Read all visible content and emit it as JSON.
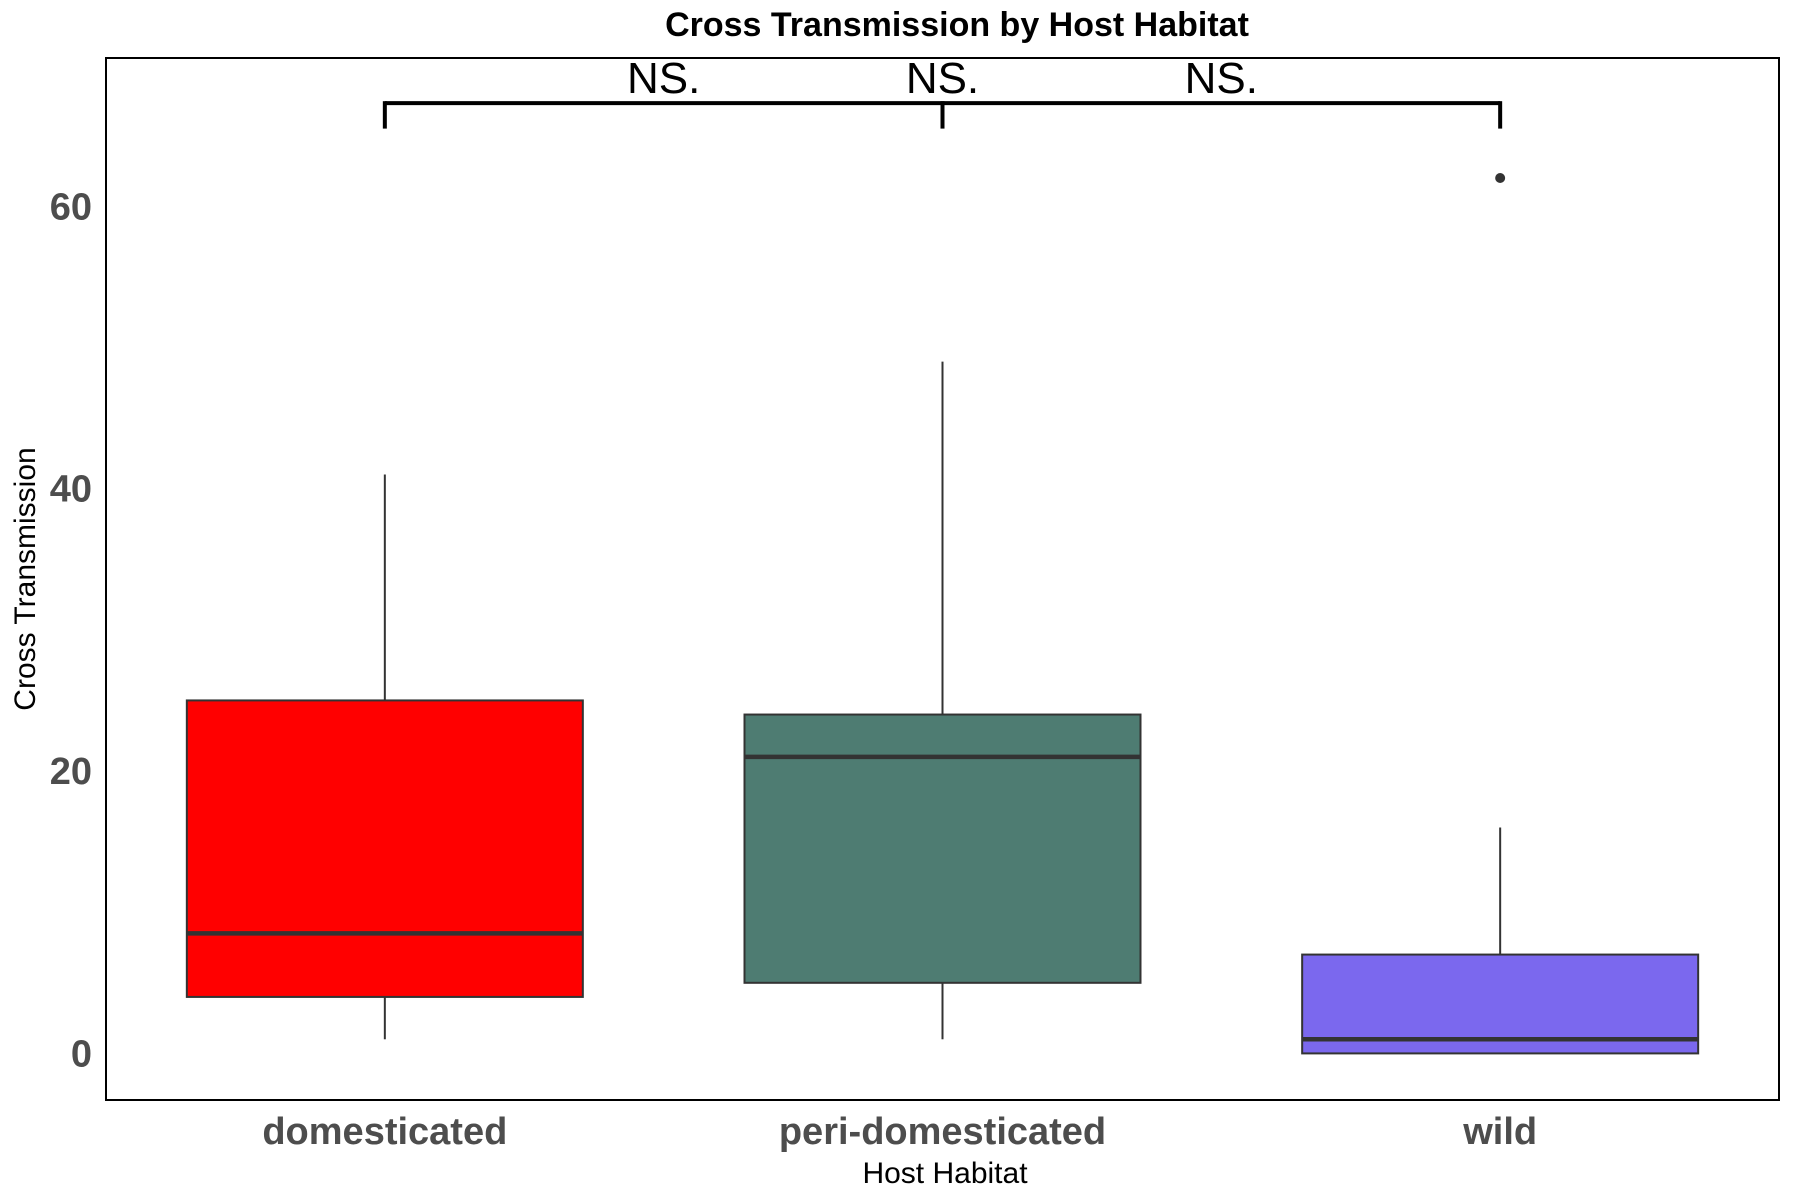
{
  "chart_data": {
    "type": "box",
    "title": "Cross Transmission by Host Habitat",
    "xlabel": "Host Habitat",
    "ylabel": "Cross Transmission",
    "ylim": [
      -3.3,
      70.5
    ],
    "yticks": [
      0,
      20,
      40,
      60
    ],
    "grid": false,
    "legend": "none",
    "categories": [
      "domesticated",
      "peri-domesticated",
      "wild"
    ],
    "boxes": [
      {
        "category": "domesticated",
        "color": "#ff0000",
        "q1": 4,
        "median": 8.5,
        "q3": 25,
        "whisker_low": 1,
        "whisker_high": 41,
        "outliers": []
      },
      {
        "category": "peri-domesticated",
        "color": "#4e7c72",
        "q1": 5,
        "median": 21,
        "q3": 24,
        "whisker_low": 1,
        "whisker_high": 49,
        "outliers": []
      },
      {
        "category": "wild",
        "color": "#7b68ee",
        "q1": 0,
        "median": 1,
        "q3": 7,
        "whisker_low": 0,
        "whisker_high": 16,
        "outliers": [
          62
        ]
      }
    ],
    "comparison": {
      "label": "NS.",
      "labels": [
        "NS.",
        "NS.",
        "NS."
      ],
      "level": 67.3,
      "tick_bottom": 65.5,
      "groups": [
        "domesticated",
        "peri-domesticated",
        "wild"
      ]
    }
  }
}
